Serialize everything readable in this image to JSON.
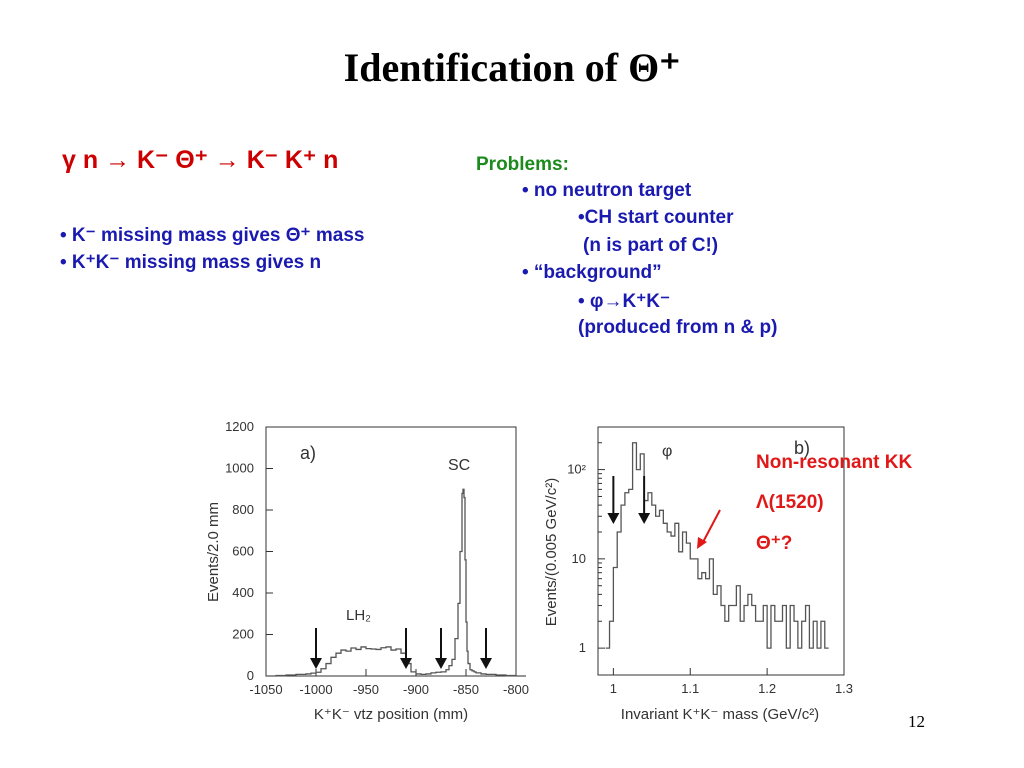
{
  "slide": {
    "title": "Identification of Θ⁺",
    "reaction": "γ n → K⁻ Θ⁺ → K⁻ K⁺ n",
    "left_bullets": [
      "• K⁻ missing mass gives Θ⁺ mass",
      "• K⁺K⁻ missing mass gives n"
    ],
    "problems": {
      "title": "Problems:",
      "items": [
        "• no neutron target",
        "•CH start counter",
        "(n is part of C!)",
        "• “background”",
        "• φ→K⁺K⁻",
        "(produced from n & p)"
      ]
    },
    "annotations": [
      "Non-resonant KK",
      "Λ(1520)",
      "Θ⁺?"
    ],
    "slide_number": "12"
  },
  "colors": {
    "title": "#000000",
    "reaction": "#cc0000",
    "bullets": "#1a1ab0",
    "problems_title": "#1c8a1c",
    "annotations": "#e01818",
    "arrow": "#e01818",
    "plot_line": "#555555"
  },
  "chart_data": [
    {
      "type": "line",
      "panel": "a)",
      "xlabel": "K⁺K⁻ vtz position  (mm)",
      "ylabel": "Events/2.0 mm",
      "xlim": [
        -1050,
        -800
      ],
      "ylim": [
        0,
        1200
      ],
      "x_ticks": [
        -1050,
        -1000,
        -950,
        -900,
        -850,
        -800
      ],
      "y_ticks": [
        0,
        200,
        400,
        600,
        800,
        1000,
        1200
      ],
      "labels": {
        "target": "LH₂",
        "counter": "SC"
      },
      "cut_arrows_x": [
        -1000,
        -910,
        -875,
        -830
      ],
      "x": [
        -1050,
        -1040,
        -1030,
        -1020,
        -1010,
        -1005,
        -1000,
        -995,
        -990,
        -985,
        -980,
        -975,
        -970,
        -965,
        -960,
        -955,
        -950,
        -945,
        -940,
        -935,
        -930,
        -925,
        -920,
        -915,
        -910,
        -905,
        -900,
        -895,
        -890,
        -885,
        -880,
        -875,
        -870,
        -867,
        -864,
        -861,
        -858,
        -856,
        -854,
        -853,
        -852,
        -851,
        -850,
        -849,
        -848,
        -846,
        -844,
        -842,
        -840,
        -835,
        -830,
        -820,
        -810,
        -800
      ],
      "y": [
        0,
        2,
        5,
        8,
        10,
        14,
        18,
        35,
        60,
        90,
        110,
        125,
        120,
        135,
        128,
        140,
        132,
        130,
        128,
        136,
        140,
        125,
        130,
        110,
        60,
        20,
        10,
        8,
        10,
        15,
        18,
        20,
        30,
        50,
        80,
        180,
        350,
        600,
        880,
        900,
        860,
        560,
        260,
        120,
        60,
        30,
        25,
        20,
        15,
        10,
        8,
        5,
        2,
        0
      ]
    },
    {
      "type": "line",
      "panel": "b)",
      "xlabel": "Invariant K⁺K⁻ mass  (GeV/c²)",
      "ylabel": "Events/(0.005 GeV/c²)",
      "y_scale": "log",
      "xlim": [
        0.98,
        1.3
      ],
      "ylim": [
        0.5,
        300
      ],
      "x_ticks": [
        1,
        1.1,
        1.2,
        1.3
      ],
      "y_ticks": [
        1,
        10,
        100
      ],
      "y_tick_labels": [
        "1",
        "10",
        "10²"
      ],
      "peak_label": "φ",
      "cut_arrows_x": [
        1.0,
        1.04
      ],
      "x": [
        0.99,
        0.995,
        1.0,
        1.005,
        1.01,
        1.015,
        1.02,
        1.025,
        1.03,
        1.035,
        1.04,
        1.045,
        1.05,
        1.055,
        1.06,
        1.065,
        1.07,
        1.075,
        1.08,
        1.085,
        1.09,
        1.095,
        1.1,
        1.105,
        1.11,
        1.115,
        1.12,
        1.125,
        1.13,
        1.135,
        1.14,
        1.145,
        1.15,
        1.155,
        1.16,
        1.165,
        1.17,
        1.175,
        1.18,
        1.185,
        1.19,
        1.195,
        1.2,
        1.205,
        1.21,
        1.215,
        1.22,
        1.225,
        1.23,
        1.235,
        1.24,
        1.245,
        1.25,
        1.255,
        1.26,
        1.265,
        1.27,
        1.275
      ],
      "y": [
        1,
        2,
        8,
        20,
        40,
        55,
        60,
        200,
        100,
        150,
        45,
        55,
        40,
        30,
        35,
        25,
        20,
        18,
        25,
        12,
        20,
        15,
        10,
        10,
        6,
        7,
        6,
        10,
        4,
        5,
        3,
        2,
        3,
        3,
        5,
        2,
        3,
        4,
        3,
        2,
        2,
        3,
        1,
        3,
        2,
        2,
        3,
        1,
        3,
        2,
        1,
        2,
        3,
        1,
        2,
        1,
        2,
        1
      ]
    }
  ]
}
